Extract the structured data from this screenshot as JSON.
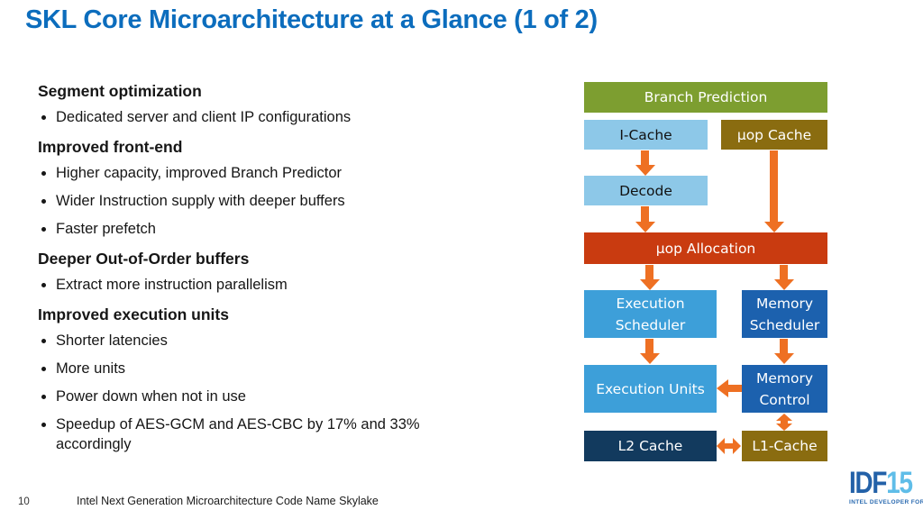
{
  "slide": {
    "title": "SKL Core Microarchitecture at a Glance (1 of 2)",
    "page_number": "10",
    "footer": "Intel Next Generation Microarchitecture Code Name Skylake"
  },
  "content": {
    "sections": [
      {
        "heading": "Segment optimization",
        "bullets": [
          "Dedicated server and client IP configurations"
        ]
      },
      {
        "heading": "Improved front-end",
        "bullets": [
          "Higher capacity, improved Branch Predictor",
          "Wider Instruction supply with deeper buffers",
          "Faster prefetch"
        ]
      },
      {
        "heading": "Deeper Out-of-Order buffers",
        "bullets": [
          "Extract more instruction parallelism"
        ]
      },
      {
        "heading": "Improved execution units",
        "bullets": [
          "Shorter latencies",
          "More units",
          "Power down when not in use",
          "Speedup of AES-GCM and AES-CBC  by 17% and 33% accordingly"
        ]
      }
    ]
  },
  "diagram": {
    "arrow_color": "#ee7023",
    "blocks": [
      {
        "id": "branch-prediction",
        "label": "Branch Prediction",
        "color": "#7d9e30",
        "text_color": "#ffffff"
      },
      {
        "id": "i-cache",
        "label": "I-Cache",
        "color": "#8dc8e8",
        "text_color": "#111111"
      },
      {
        "id": "uop-cache",
        "label": "µop Cache",
        "color": "#8a6c10",
        "text_color": "#ffffff"
      },
      {
        "id": "decode",
        "label": "Decode",
        "color": "#8dc8e8",
        "text_color": "#111111"
      },
      {
        "id": "uop-allocation",
        "label": "µop Allocation",
        "color": "#c93b10",
        "text_color": "#ffffff"
      },
      {
        "id": "execution-scheduler",
        "label": "Execution Scheduler",
        "color": "#3d9fd9",
        "text_color": "#ffffff"
      },
      {
        "id": "memory-scheduler",
        "label": "Memory Scheduler",
        "color": "#1c61ae",
        "text_color": "#ffffff"
      },
      {
        "id": "execution-units",
        "label": "Execution Units",
        "color": "#3d9fd9",
        "text_color": "#ffffff"
      },
      {
        "id": "memory-control",
        "label": "Memory Control",
        "color": "#1c61ae",
        "text_color": "#ffffff"
      },
      {
        "id": "l2-cache",
        "label": "L2 Cache",
        "color": "#123a5e",
        "text_color": "#ffffff"
      },
      {
        "id": "l1-cache",
        "label": "L1-Cache",
        "color": "#8a6c10",
        "text_color": "#ffffff"
      }
    ]
  },
  "logo": {
    "name": "IDF",
    "year": "15",
    "subtitle": "INTEL DEVELOPER FORUM",
    "name_color": "#2361a8",
    "year_color": "#5fbde8"
  },
  "colors": {
    "title_blue": "#0c6dbd",
    "body_text": "#161616",
    "background": "#ffffff"
  }
}
